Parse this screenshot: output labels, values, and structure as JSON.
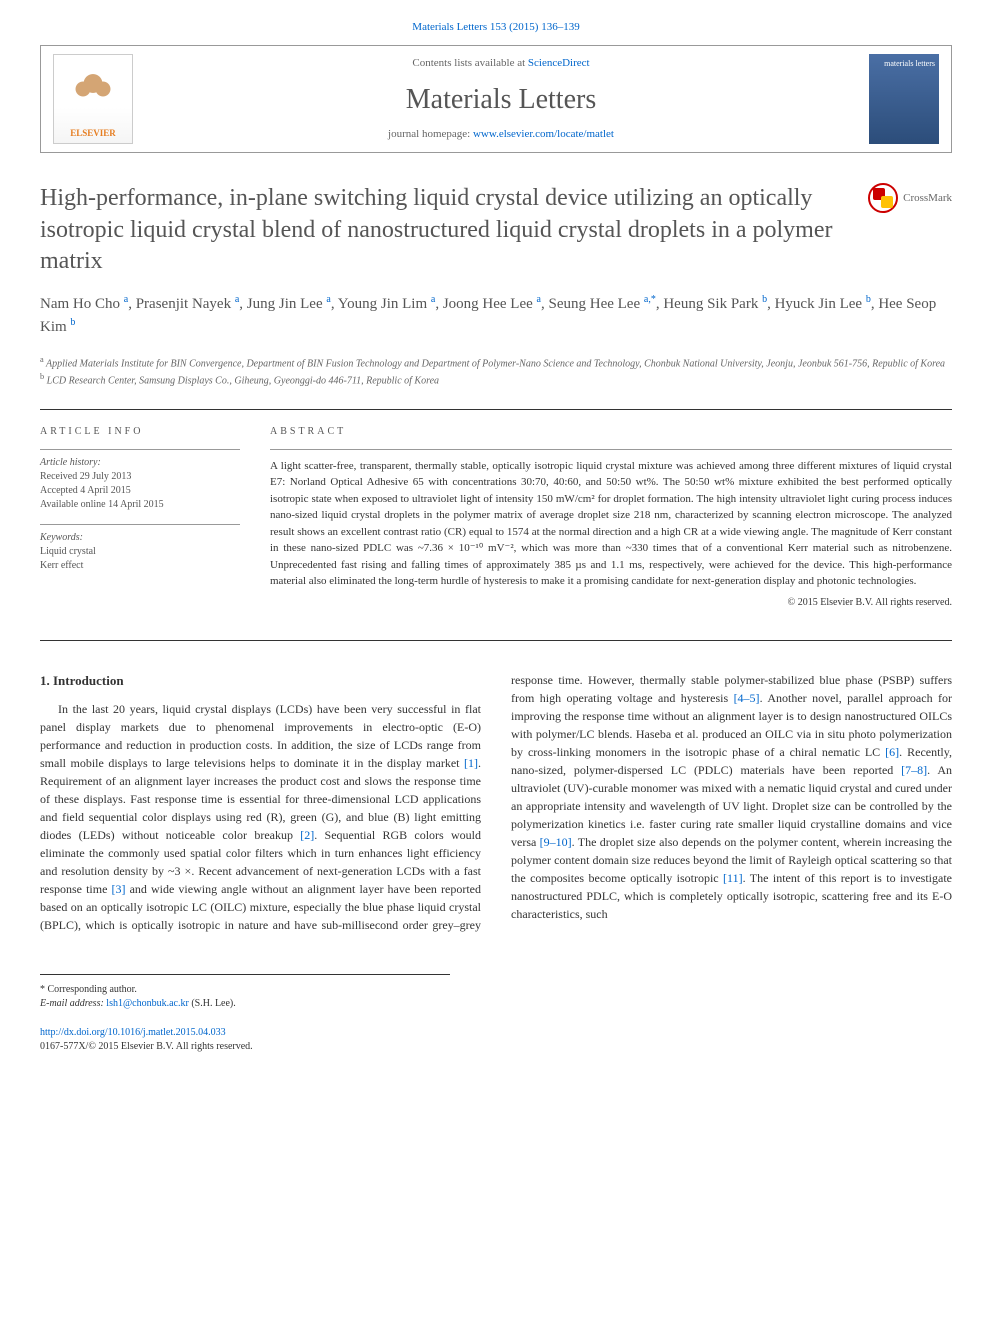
{
  "journal_link_top": "Materials Letters 153 (2015) 136–139",
  "header": {
    "contents_prefix": "Contents lists available at ",
    "contents_link": "ScienceDirect",
    "journal_name": "Materials Letters",
    "homepage_prefix": "journal homepage: ",
    "homepage_link": "www.elsevier.com/locate/matlet",
    "elsevier_label": "ELSEVIER",
    "cover_text": "materials letters"
  },
  "title": "High-performance, in-plane switching liquid crystal device utilizing an optically isotropic liquid crystal blend of nanostructured liquid crystal droplets in a polymer matrix",
  "crossmark_label": "CrossMark",
  "authors_html": "Nam Ho Cho <sup>a</sup>, Prasenjit Nayek <sup>a</sup>, Jung Jin Lee <sup>a</sup>, Young Jin Lim <sup>a</sup>, Joong Hee Lee <sup>a</sup>, Seung Hee Lee <sup>a,*</sup>, Heung Sik Park <sup>b</sup>, Hyuck Jin Lee <sup>b</sup>, Hee Seop Kim <sup>b</sup>",
  "affiliations": {
    "a": "Applied Materials Institute for BIN Convergence, Department of BIN Fusion Technology and Department of Polymer-Nano Science and Technology, Chonbuk National University, Jeonju, Jeonbuk 561-756, Republic of Korea",
    "b": "LCD Research Center, Samsung Displays Co., Giheung, Gyeonggi-do 446-711, Republic of Korea"
  },
  "article_info": {
    "heading": "ARTICLE INFO",
    "history_label": "Article history:",
    "received": "Received 29 July 2013",
    "accepted": "Accepted 4 April 2015",
    "available": "Available online 14 April 2015",
    "keywords_label": "Keywords:",
    "keyword1": "Liquid crystal",
    "keyword2": "Kerr effect"
  },
  "abstract": {
    "heading": "ABSTRACT",
    "text": "A light scatter-free, transparent, thermally stable, optically isotropic liquid crystal mixture was achieved among three different mixtures of liquid crystal E7: Norland Optical Adhesive 65 with concentrations 30:70, 40:60, and 50:50 wt%. The 50:50 wt% mixture exhibited the best performed optically isotropic state when exposed to ultraviolet light of intensity 150 mW/cm² for droplet formation. The high intensity ultraviolet light curing process induces nano-sized liquid crystal droplets in the polymer matrix of average droplet size 218 nm, characterized by scanning electron microscope. The analyzed result shows an excellent contrast ratio (CR) equal to 1574 at the normal direction and a high CR at a wide viewing angle. The magnitude of Kerr constant in these nano-sized PDLC was ~7.36 × 10⁻¹⁰ mV⁻², which was more than ~330 times that of a conventional Kerr material such as nitrobenzene. Unprecedented fast rising and falling times of approximately 385 µs and 1.1 ms, respectively, were achieved for the device. This high-performance material also eliminated the long-term hurdle of hysteresis to make it a promising candidate for next-generation display and photonic technologies.",
    "copyright": "© 2015 Elsevier B.V. All rights reserved."
  },
  "intro": {
    "heading": "1. Introduction",
    "p1_a": "In the last 20 years, liquid crystal displays (LCDs) have been very successful in flat panel display markets due to phenomenal improvements in electro-optic (E-O) performance and reduction in production costs. In addition, the size of LCDs range from small mobile displays to large televisions helps to dominate it in the display market ",
    "ref1": "[1]",
    "p1_b": ". Requirement of an alignment layer increases the product cost and slows the response time of these displays. Fast response time is essential for three-dimensional LCD applications and field sequential color displays using red (R), green (G), and blue (B) light emitting diodes (LEDs) without noticeable color breakup ",
    "ref2": "[2]",
    "p1_c": ". Sequential RGB colors would eliminate the commonly used spatial color filters which in turn enhances light efficiency and resolution density by ~3 ×. Recent advancement of next-generation LCDs with a fast response time ",
    "ref3": "[3]",
    "p1_d": " and wide viewing angle without an alignment layer have been reported based on an ",
    "p2_a": "optically isotropic LC (OILC) mixture, especially the blue phase liquid crystal (BPLC), which is optically isotropic in nature and have sub-millisecond order grey–grey response time. However, thermally stable polymer-stabilized blue phase (PSBP) suffers from high operating voltage and hysteresis ",
    "ref45": "[4–5]",
    "p2_b": ". Another novel, parallel approach for improving the response time without an alignment layer is to design nanostructured OILCs with polymer/LC blends. Haseba et al. produced an OILC via in situ photo polymerization by cross-linking monomers in the isotropic phase of a chiral nematic LC ",
    "ref6": "[6]",
    "p2_c": ". Recently, nano-sized, polymer-dispersed LC (PDLC) materials have been reported ",
    "ref78": "[7–8]",
    "p2_d": ". An ultraviolet (UV)-curable monomer was mixed with a nematic liquid crystal and cured under an appropriate intensity and wavelength of UV light. Droplet size can be controlled by the polymerization kinetics i.e. faster curing rate smaller liquid crystalline domains and vice versa ",
    "ref910": "[9–10]",
    "p2_e": ". The droplet size also depends on the polymer content, wherein increasing the polymer content domain size reduces beyond the limit of Rayleigh optical scattering so that the composites become optically isotropic ",
    "ref11": "[11]",
    "p2_f": ". The intent of this report is to investigate nanostructured PDLC, which is completely optically isotropic, scattering free and its E-O characteristics, such"
  },
  "footer": {
    "corresponding": "* Corresponding author.",
    "email_label": "E-mail address: ",
    "email": "lsh1@chonbuk.ac.kr",
    "email_suffix": " (S.H. Lee).",
    "doi": "http://dx.doi.org/10.1016/j.matlet.2015.04.033",
    "issn": "0167-577X/© 2015 Elsevier B.V. All rights reserved."
  }
}
